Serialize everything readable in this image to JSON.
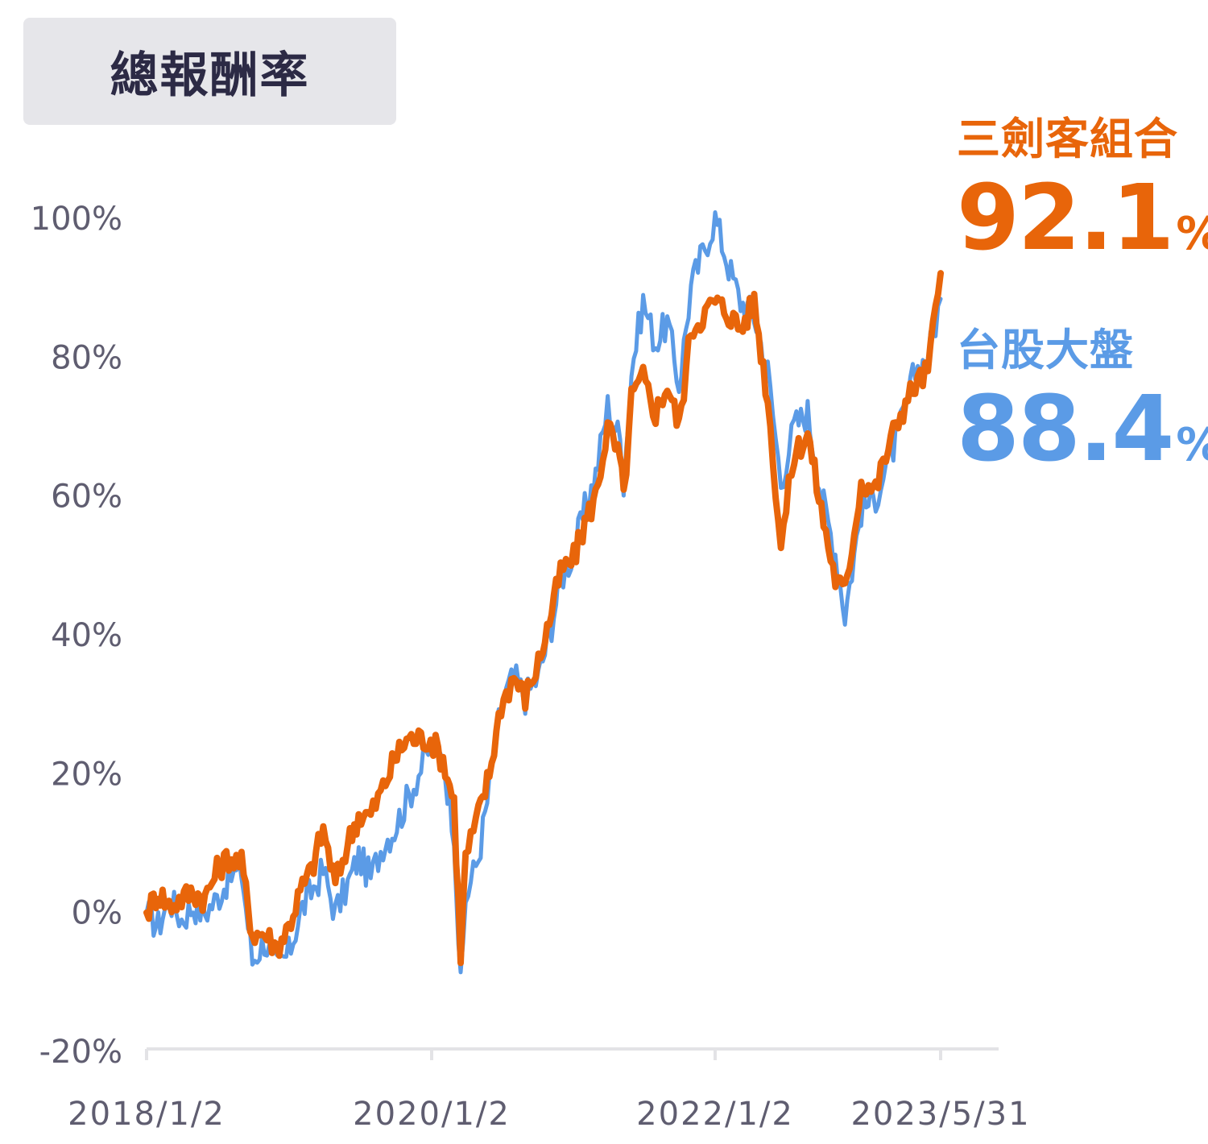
{
  "header": {
    "title": "總報酬率"
  },
  "legend": {
    "portfolio": {
      "name": "三劍客組合",
      "value": "92.1",
      "unit": "%",
      "color": "#e8650a"
    },
    "market": {
      "name": "台股大盤",
      "value": "88.4",
      "unit": "%",
      "color": "#5b9be6"
    }
  },
  "chart_data": {
    "type": "line",
    "ylim": [
      -20,
      100
    ],
    "yticks": [
      "-20%",
      "0%",
      "20%",
      "40%",
      "60%",
      "80%",
      "100%"
    ],
    "xticks": [
      "2018/1/2",
      "2020/1/2",
      "2022/1/2",
      "2023/5/31"
    ],
    "grid": false,
    "x": [
      "2018/1/2",
      "2018/2/1",
      "2018/3/1",
      "2018/4/2",
      "2018/5/2",
      "2018/6/1",
      "2018/7/2",
      "2018/8/1",
      "2018/9/3",
      "2018/10/1",
      "2018/11/1",
      "2018/12/3",
      "2019/1/2",
      "2019/2/1",
      "2019/3/1",
      "2019/4/1",
      "2019/5/2",
      "2019/6/3",
      "2019/7/1",
      "2019/8/1",
      "2019/9/2",
      "2019/10/1",
      "2019/11/1",
      "2019/12/2",
      "2020/1/2",
      "2020/2/3",
      "2020/3/2",
      "2020/3/19",
      "2020/4/1",
      "2020/5/4",
      "2020/6/1",
      "2020/7/1",
      "2020/8/3",
      "2020/9/1",
      "2020/10/5",
      "2020/11/2",
      "2020/12/1",
      "2021/1/4",
      "2021/2/1",
      "2021/3/1",
      "2021/4/1",
      "2021/5/3",
      "2021/5/12",
      "2021/6/1",
      "2021/7/1",
      "2021/8/2",
      "2021/9/1",
      "2021/10/1",
      "2021/11/1",
      "2021/12/1",
      "2022/1/2",
      "2022/2/7",
      "2022/3/1",
      "2022/4/1",
      "2022/5/2",
      "2022/6/1",
      "2022/7/1",
      "2022/8/1",
      "2022/9/1",
      "2022/10/3",
      "2022/10/25",
      "2022/12/1",
      "2023/1/3",
      "2023/2/1",
      "2023/3/1",
      "2023/4/3",
      "2023/5/2",
      "2023/5/31"
    ],
    "series": [
      {
        "name": "台股大盤",
        "color": "#5b9be6",
        "values": [
          0,
          -2,
          2,
          -1,
          1,
          0,
          2,
          5,
          6,
          -7,
          -4,
          -8,
          -6,
          0,
          3,
          6,
          0,
          4,
          8,
          5,
          10,
          12,
          16,
          20,
          24,
          22,
          12,
          -11,
          2,
          8,
          18,
          30,
          34,
          31,
          34,
          40,
          48,
          52,
          58,
          63,
          73,
          68,
          62,
          78,
          88,
          82,
          85,
          76,
          90,
          95,
          100,
          92,
          88,
          86,
          78,
          62,
          70,
          72,
          60,
          52,
          43,
          58,
          60,
          65,
          70,
          78,
          80,
          88.4
        ]
      },
      {
        "name": "三劍客組合",
        "color": "#e8650a",
        "values": [
          0,
          3,
          1,
          2,
          3,
          2,
          6,
          8,
          7,
          -3,
          -3,
          -5,
          -2,
          3,
          6,
          12,
          4,
          10,
          14,
          14,
          18,
          22,
          25,
          25,
          25,
          22,
          16,
          -6,
          8,
          14,
          20,
          30,
          34,
          31,
          36,
          42,
          49,
          51,
          56,
          60,
          70,
          65,
          60,
          74,
          77,
          72,
          76,
          70,
          84,
          86,
          88,
          86,
          84,
          88,
          74,
          53,
          66,
          69,
          58,
          48,
          46,
          62,
          61,
          67,
          72,
          76,
          78,
          92.1
        ]
      }
    ]
  }
}
